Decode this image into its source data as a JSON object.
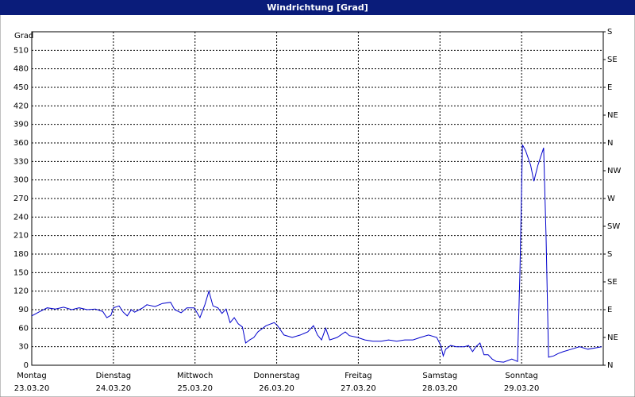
{
  "chart_data": {
    "type": "line",
    "title": "Windrichtung [Grad]",
    "y_label": "Grad",
    "grid": true,
    "xlim": [
      0,
      7
    ],
    "xticks": [
      {
        "value": 0,
        "label": "Montag",
        "date": "23.03.20"
      },
      {
        "value": 1,
        "label": "Dienstag",
        "date": "24.03.20"
      },
      {
        "value": 2,
        "label": "Mittwoch",
        "date": "25.03.20"
      },
      {
        "value": 3,
        "label": "Donnerstag",
        "date": "26.03.20"
      },
      {
        "value": 4,
        "label": "Freitag",
        "date": "27.03.20"
      },
      {
        "value": 5,
        "label": "Samstag",
        "date": "28.03.20"
      },
      {
        "value": 6,
        "label": "Sonntag",
        "date": "29.03.20"
      }
    ],
    "ylim": [
      0,
      540
    ],
    "yticks": [
      0,
      30,
      60,
      90,
      120,
      150,
      180,
      210,
      240,
      270,
      300,
      330,
      360,
      390,
      420,
      450,
      480,
      510
    ],
    "y2lim": [
      0,
      540
    ],
    "y2ticks": [
      {
        "value": 0,
        "label": "N"
      },
      {
        "value": 45,
        "label": "NE"
      },
      {
        "value": 90,
        "label": "E"
      },
      {
        "value": 135,
        "label": "SE"
      },
      {
        "value": 180,
        "label": "S"
      },
      {
        "value": 225,
        "label": "SW"
      },
      {
        "value": 270,
        "label": "W"
      },
      {
        "value": 315,
        "label": "NW"
      },
      {
        "value": 360,
        "label": "N"
      },
      {
        "value": 405,
        "label": "NE"
      },
      {
        "value": 450,
        "label": "E"
      },
      {
        "value": 495,
        "label": "SE"
      },
      {
        "value": 540,
        "label": "S"
      }
    ],
    "x": [
      0,
      0.1,
      0.19,
      0.29,
      0.39,
      0.49,
      0.58,
      0.68,
      0.78,
      0.87,
      0.92,
      0.97,
      1.0,
      1.07,
      1.12,
      1.17,
      1.22,
      1.26,
      1.36,
      1.41,
      1.51,
      1.6,
      1.7,
      1.75,
      1.83,
      1.9,
      1.99,
      2.06,
      2.12,
      2.17,
      2.22,
      2.28,
      2.33,
      2.38,
      2.43,
      2.48,
      2.53,
      2.58,
      2.62,
      2.67,
      2.72,
      2.77,
      2.87,
      2.97,
      3.01,
      3.09,
      3.19,
      3.29,
      3.38,
      3.45,
      3.5,
      3.55,
      3.6,
      3.65,
      3.74,
      3.84,
      3.89,
      3.99,
      4.08,
      4.18,
      4.28,
      4.37,
      4.47,
      4.57,
      4.67,
      4.76,
      4.86,
      4.96,
      5.01,
      5.04,
      5.07,
      5.13,
      5.2,
      5.3,
      5.35,
      5.4,
      5.44,
      5.49,
      5.54,
      5.59,
      5.64,
      5.69,
      5.78,
      5.88,
      5.95,
      5.98,
      6.01,
      6.05,
      6.11,
      6.15,
      6.2,
      6.27,
      6.3,
      6.33,
      6.39,
      6.45,
      6.51,
      6.61,
      6.71,
      6.81,
      6.9,
      6.98
    ],
    "series": [
      {
        "name": "Windrichtung",
        "color": "#0000cc",
        "values": [
          80,
          87,
          93,
          91,
          94,
          90,
          93,
          90,
          91,
          87,
          77,
          81,
          93,
          96,
          86,
          80,
          90,
          86,
          93,
          98,
          95,
          100,
          102,
          90,
          85,
          93,
          93,
          77,
          98,
          120,
          96,
          93,
          84,
          91,
          69,
          77,
          67,
          62,
          36,
          41,
          45,
          54,
          64,
          69,
          64,
          49,
          45,
          49,
          54,
          64,
          49,
          41,
          60,
          41,
          45,
          54,
          48,
          45,
          41,
          39,
          39,
          41,
          39,
          41,
          41,
          45,
          49,
          45,
          32,
          15,
          26,
          32,
          30,
          30,
          32,
          22,
          30,
          36,
          17,
          17,
          10,
          6,
          5,
          10,
          6,
          154,
          357,
          347,
          324,
          298,
          324,
          352,
          206,
          13,
          15,
          19,
          22,
          26,
          30,
          26,
          28,
          30
        ]
      }
    ]
  }
}
